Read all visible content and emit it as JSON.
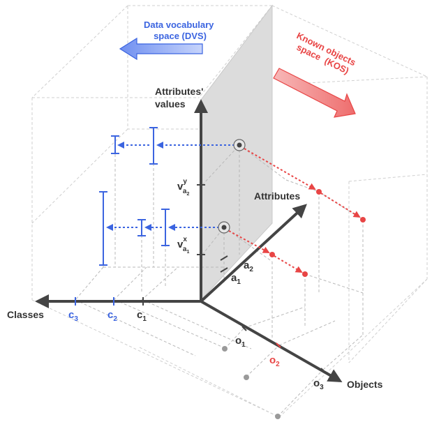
{
  "spaces": {
    "dvs": {
      "line1": "Data vocabulary",
      "line2": "space (DVS)",
      "color": "#3b64e0"
    },
    "kos": {
      "line1": "Known objects",
      "line2": "space",
      "line3": "(KOS)",
      "color": "#e84545"
    }
  },
  "axes": {
    "values": {
      "line1": "Attributes'",
      "line2": "values"
    },
    "attributes": "Attributes",
    "classes": "Classes",
    "objects": "Objects"
  },
  "ticks": {
    "classes": [
      {
        "base": "c",
        "sub": "3",
        "color": "#3b64e0"
      },
      {
        "base": "c",
        "sub": "2",
        "color": "#3b64e0"
      },
      {
        "base": "c",
        "sub": "1",
        "color": "#333333"
      }
    ],
    "objects": [
      {
        "base": "o",
        "sub": "1",
        "color": "#333333"
      },
      {
        "base": "o",
        "sub": "2",
        "color": "#e84545"
      },
      {
        "base": "o",
        "sub": "3",
        "color": "#333333"
      }
    ],
    "attributes": [
      {
        "base": "a",
        "sub": "2",
        "color": "#333333"
      },
      {
        "base": "a",
        "sub": "1",
        "color": "#333333"
      }
    ],
    "values": [
      {
        "base": "v",
        "sup": "y",
        "sub": "a",
        "subsub": "2",
        "color": "#333333"
      },
      {
        "base": "v",
        "sup": "x",
        "sub": "a",
        "subsub": "1",
        "color": "#333333"
      }
    ]
  },
  "colors": {
    "axis": "#444444",
    "blue": "#3b64e0",
    "red": "#e84545",
    "plane": "#d8d8d8"
  }
}
